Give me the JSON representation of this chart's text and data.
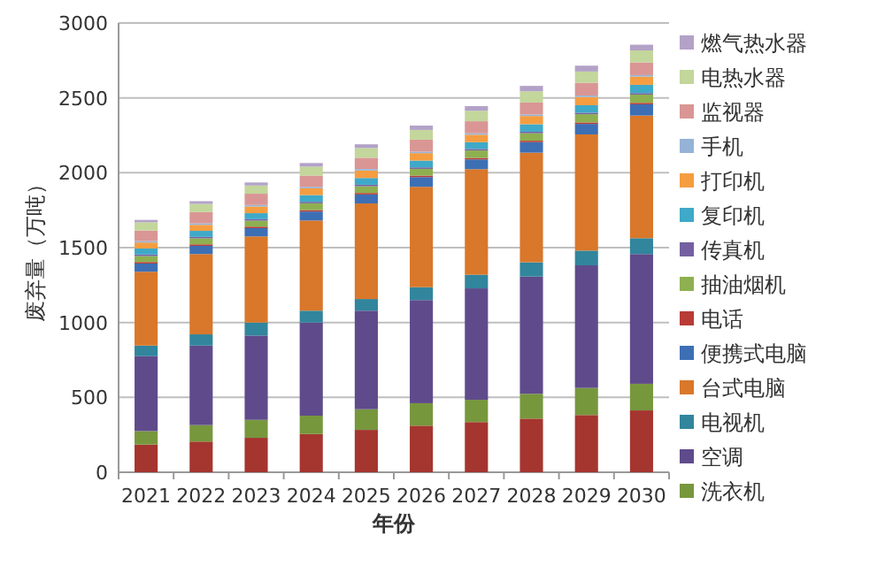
{
  "chart_data": {
    "type": "bar",
    "stacked": true,
    "xlabel": "年份",
    "ylabel": "废弃量（万吨）",
    "categories": [
      "2021",
      "2022",
      "2023",
      "2024",
      "2025",
      "2026",
      "2027",
      "2028",
      "2029",
      "2030"
    ],
    "ylim": [
      0,
      3000
    ],
    "yticks": [
      0,
      500,
      1000,
      1500,
      2000,
      2500,
      3000
    ],
    "grid": "y",
    "legend": "right",
    "series": [
      {
        "color": "#a5352f",
        "values": [
          185,
          205,
          230,
          255,
          283,
          311,
          335,
          358,
          382,
          413
        ]
      },
      {
        "name": "洗衣机",
        "color": "#77973d",
        "values": [
          90,
          110,
          120,
          123,
          138,
          150,
          149,
          166,
          181,
          178
        ]
      },
      {
        "name": "空调",
        "color": "#5f4b8b",
        "values": [
          500,
          531,
          563,
          622,
          658,
          689,
          744,
          783,
          819,
          866
        ]
      },
      {
        "name": "电视机",
        "color": "#31859c",
        "values": [
          71,
          75,
          87,
          79,
          78,
          86,
          91,
          95,
          98,
          106
        ]
      },
      {
        "name": "台式电脑",
        "color": "#d9772a",
        "values": [
          493,
          536,
          575,
          602,
          638,
          670,
          705,
          732,
          776,
          819
        ]
      },
      {
        "name": "便携式电脑",
        "color": "#3d6fb5",
        "values": [
          55,
          55,
          55,
          60,
          60,
          65,
          65,
          70,
          70,
          75
        ]
      },
      {
        "name": "电话",
        "color": "#b83b36",
        "values": [
          10,
          10,
          10,
          10,
          10,
          10,
          10,
          10,
          10,
          10
        ]
      },
      {
        "name": "抽油烟机",
        "color": "#8eb050",
        "values": [
          40,
          40,
          40,
          45,
          45,
          45,
          50,
          50,
          55,
          55
        ]
      },
      {
        "name": "传真机",
        "color": "#7460a0",
        "values": [
          10,
          10,
          10,
          10,
          10,
          10,
          10,
          10,
          10,
          10
        ]
      },
      {
        "name": "复印机",
        "color": "#3ea9c8",
        "values": [
          40,
          40,
          40,
          45,
          45,
          45,
          45,
          50,
          50,
          55
        ]
      },
      {
        "name": "打印机",
        "color": "#f59d41",
        "values": [
          40,
          40,
          45,
          45,
          50,
          50,
          50,
          55,
          55,
          55
        ]
      },
      {
        "name": "手机",
        "color": "#95b3d7",
        "values": [
          10,
          10,
          10,
          10,
          10,
          10,
          10,
          10,
          10,
          10
        ]
      },
      {
        "name": "监视器",
        "color": "#d99694",
        "values": [
          70,
          75,
          75,
          75,
          75,
          80,
          80,
          80,
          85,
          85
        ]
      },
      {
        "name": "电热水器",
        "color": "#c3d69b",
        "values": [
          55,
          55,
          55,
          60,
          65,
          65,
          70,
          75,
          75,
          80
        ]
      },
      {
        "name": "燃气热水器",
        "color": "#b3a2c7",
        "values": [
          16,
          18,
          20,
          24,
          25,
          29,
          31,
          36,
          39,
          38
        ]
      }
    ]
  }
}
